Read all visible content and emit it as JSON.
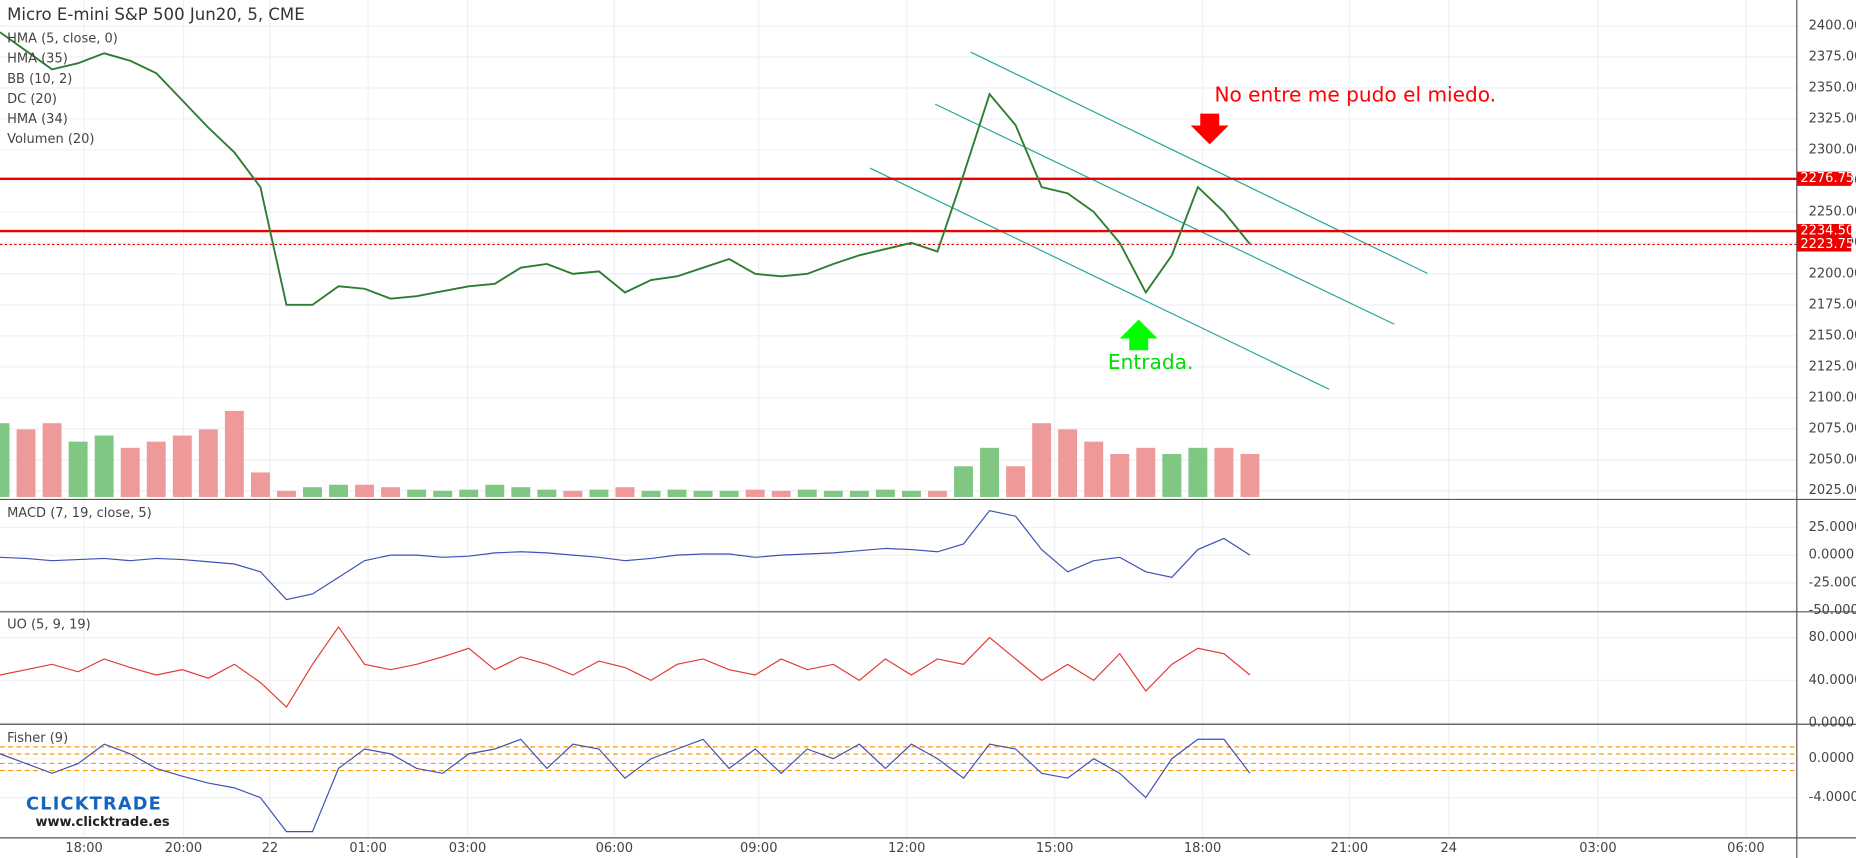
{
  "chart_data": [
    {
      "type": "line",
      "title": "Micro E-mini S&P 500 Jun20, 5, CME",
      "legend": [
        "HMA (5, close, 0)",
        "HMA (35)",
        "BB (10, 2)",
        "DC (20)",
        "HMA (34)",
        "Volumen (20)"
      ],
      "annotations": [
        "No entre me pudo el miedo.",
        "Entrada."
      ],
      "x_labels": [
        "18:00",
        "20:00",
        "22",
        "01:00",
        "03:00",
        "06:00",
        "09:00",
        "12:00",
        "15:00",
        "18:00",
        "21:00",
        "24",
        "03:00",
        "06:00"
      ],
      "ylim": [
        2018,
        2421
      ],
      "yticks": [
        {
          "value": 2025,
          "label": "2025.00"
        },
        {
          "value": 2050,
          "label": "2050.00"
        },
        {
          "value": 2075,
          "label": "2075.00"
        },
        {
          "value": 2100,
          "label": "2100.00"
        },
        {
          "value": 2125,
          "label": "2125.00"
        },
        {
          "value": 2150,
          "label": "2150.00"
        },
        {
          "value": 2175,
          "label": "2175.00"
        },
        {
          "value": 2200,
          "label": "2200.00"
        },
        {
          "value": 2225,
          "label": "2225.00"
        },
        {
          "value": 2250,
          "label": "2250.00"
        },
        {
          "value": 2275,
          "label": "2275.00"
        },
        {
          "value": 2300,
          "label": "2300.00"
        },
        {
          "value": 2325,
          "label": "2325.00"
        },
        {
          "value": 2350,
          "label": "2350.00"
        },
        {
          "value": 2375,
          "label": "2375.00"
        },
        {
          "value": 2400,
          "label": "2400.00"
        }
      ],
      "price_lines": [
        2276.75,
        {
          "value": 2234.5,
          "label": "2234.50"
        },
        2223.75
      ],
      "color": "#2e7d32",
      "values": [
        2395,
        2380,
        2365,
        2370,
        2378,
        2372,
        2362,
        2340,
        2318,
        2298,
        2270,
        2175,
        2175,
        2190,
        2188,
        2180,
        2182,
        2186,
        2190,
        2192,
        2205,
        2208,
        2200,
        2202,
        2185,
        2195,
        2198,
        2205,
        2212,
        2200,
        2198,
        2200,
        2208,
        2215,
        2220,
        2225,
        2218,
        2280,
        2345,
        2320,
        2270,
        2265,
        2250,
        2225,
        2185,
        2215,
        2270,
        2250,
        2224
      ],
      "volume": {
        "ylim": [
          0,
          100
        ],
        "up_color": "#81c784",
        "down_color": "#ef9a9a",
        "values": [
          60,
          55,
          60,
          45,
          50,
          40,
          45,
          50,
          55,
          70,
          20,
          5,
          8,
          10,
          10,
          8,
          6,
          5,
          6,
          10,
          8,
          6,
          5,
          6,
          8,
          5,
          6,
          5,
          5,
          6,
          5,
          6,
          5,
          5,
          6,
          5,
          5,
          25,
          40,
          25,
          60,
          55,
          45,
          35,
          40,
          35,
          40,
          40,
          35
        ]
      }
    },
    {
      "type": "line",
      "title": "MACD (7, 19, close, 5)",
      "color": "#3f51b5",
      "ylim": [
        -50,
        48
      ],
      "yticks": [
        {
          "value": 25,
          "label": "25.0000"
        },
        {
          "value": 0,
          "label": "0.0000"
        },
        {
          "value": -25,
          "label": "-25.0000"
        },
        {
          "value": -50,
          "label": "-50.0000"
        }
      ],
      "values": [
        -2,
        -3,
        -5,
        -4,
        -3,
        -5,
        -3,
        -4,
        -6,
        -8,
        -15,
        -40,
        -35,
        -20,
        -5,
        0,
        0,
        -2,
        -1,
        2,
        3,
        2,
        0,
        -2,
        -5,
        -3,
        0,
        1,
        1,
        -2,
        0,
        1,
        2,
        4,
        6,
        5,
        3,
        10,
        40,
        35,
        5,
        -15,
        -5,
        -2,
        -15,
        -20,
        5,
        15,
        0
      ]
    },
    {
      "type": "line",
      "title": "UO (5, 9, 19)",
      "color": "#e53935",
      "ylim": [
        0,
        103
      ],
      "yticks": [
        {
          "value": 80,
          "label": "80.0000"
        },
        {
          "value": 40,
          "label": "40.0000"
        },
        {
          "value": 0,
          "label": "0.0000"
        }
      ],
      "values": [
        45,
        50,
        55,
        48,
        60,
        52,
        45,
        50,
        42,
        55,
        38,
        15,
        55,
        90,
        55,
        50,
        55,
        62,
        70,
        50,
        62,
        55,
        45,
        58,
        52,
        40,
        55,
        60,
        50,
        45,
        60,
        50,
        55,
        40,
        60,
        45,
        60,
        55,
        80,
        60,
        40,
        55,
        40,
        65,
        30,
        55,
        70,
        65,
        45
      ]
    },
    {
      "type": "line",
      "title": "Fisher (9)",
      "color": "#3f51b5",
      "ylim": [
        -7.9,
        3.3
      ],
      "yticks": [
        {
          "value": 0,
          "label": "0.0000"
        },
        {
          "value": -4,
          "label": "-4.0000"
        }
      ],
      "values": [
        0.5,
        -0.5,
        -1.5,
        -0.5,
        1.5,
        0.5,
        -1,
        -1.8,
        -2.5,
        -3,
        -4,
        -7.5,
        -7.5,
        -1,
        1,
        0.5,
        -1,
        -1.5,
        0.5,
        1,
        2,
        -1,
        1.5,
        1,
        -2,
        0,
        1,
        2,
        -1,
        1,
        -1.5,
        1,
        0,
        1.5,
        -1,
        1.5,
        0,
        -2,
        1.5,
        1,
        -1.5,
        -2,
        0,
        -1.5,
        -4,
        0,
        2,
        2,
        -1.5
      ]
    }
  ],
  "logo": {
    "name": "CLICKTRADE",
    "url": "www.clicktrade.es"
  }
}
